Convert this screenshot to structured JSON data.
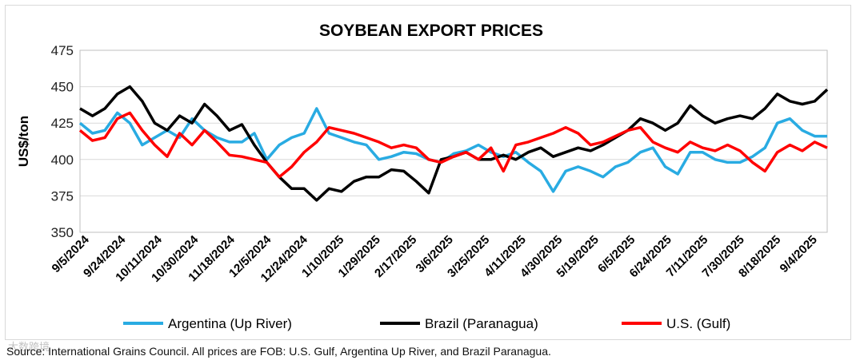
{
  "chart_data": {
    "type": "line",
    "title": "SOYBEAN EXPORT PRICES",
    "xlabel": "",
    "ylabel": "US$/ton",
    "ylim": [
      350,
      475
    ],
    "yticks": [
      350,
      375,
      400,
      425,
      450,
      475
    ],
    "grid": true,
    "legend_position": "bottom",
    "x_tick_labels": [
      "9/5/2024",
      "9/24/2024",
      "10/11/2024",
      "10/30/2024",
      "11/18/2024",
      "12/5/2024",
      "12/24/2024",
      "1/10/2025",
      "1/29/2025",
      "2/17/2025",
      "3/6/2025",
      "3/25/2025",
      "4/11/2025",
      "4/30/2025",
      "5/19/2025",
      "6/5/2025",
      "6/24/2025",
      "7/11/2025",
      "7/30/2025",
      "8/18/2025",
      "9/4/2025"
    ],
    "series": [
      {
        "name": "Argentina (Up River)",
        "color": "#29abe2",
        "values": [
          [
            0,
            425
          ],
          [
            1,
            418
          ],
          [
            2,
            420
          ],
          [
            3,
            432
          ],
          [
            4,
            425
          ],
          [
            5,
            410
          ],
          [
            6,
            415
          ],
          [
            7,
            420
          ],
          [
            8,
            415
          ],
          [
            9,
            428
          ],
          [
            10,
            420
          ],
          [
            11,
            415
          ],
          [
            12,
            412
          ],
          [
            13,
            412
          ],
          [
            14,
            418
          ],
          [
            15,
            400
          ],
          [
            16,
            410
          ],
          [
            17,
            415
          ],
          [
            18,
            418
          ],
          [
            19,
            435
          ],
          [
            20,
            418
          ],
          [
            21,
            415
          ],
          [
            22,
            412
          ],
          [
            23,
            410
          ],
          [
            24,
            400
          ],
          [
            25,
            402
          ],
          [
            26,
            405
          ],
          [
            27,
            404
          ],
          [
            28,
            400
          ],
          [
            29,
            398
          ],
          [
            30,
            404
          ],
          [
            31,
            406
          ],
          [
            32,
            410
          ],
          [
            33,
            405
          ],
          [
            34,
            402
          ],
          [
            35,
            405
          ],
          [
            36,
            398
          ],
          [
            37,
            392
          ],
          [
            38,
            378
          ],
          [
            39,
            392
          ],
          [
            40,
            395
          ],
          [
            41,
            392
          ],
          [
            42,
            388
          ],
          [
            43,
            395
          ],
          [
            44,
            398
          ],
          [
            45,
            405
          ],
          [
            46,
            408
          ],
          [
            47,
            395
          ],
          [
            48,
            390
          ],
          [
            49,
            405
          ],
          [
            50,
            405
          ],
          [
            51,
            400
          ],
          [
            52,
            398
          ],
          [
            53,
            398
          ],
          [
            54,
            402
          ],
          [
            55,
            408
          ],
          [
            56,
            425
          ],
          [
            57,
            428
          ],
          [
            58,
            420
          ],
          [
            59,
            416
          ],
          [
            60,
            416
          ]
        ]
      },
      {
        "name": "Brazil (Paranagua)",
        "color": "#000000",
        "values": [
          [
            0,
            435
          ],
          [
            1,
            430
          ],
          [
            2,
            435
          ],
          [
            3,
            445
          ],
          [
            4,
            450
          ],
          [
            5,
            440
          ],
          [
            6,
            425
          ],
          [
            7,
            420
          ],
          [
            8,
            430
          ],
          [
            9,
            425
          ],
          [
            10,
            438
          ],
          [
            11,
            430
          ],
          [
            12,
            420
          ],
          [
            13,
            424
          ],
          [
            14,
            410
          ],
          [
            15,
            398
          ],
          [
            16,
            388
          ],
          [
            17,
            380
          ],
          [
            18,
            380
          ],
          [
            19,
            372
          ],
          [
            20,
            380
          ],
          [
            21,
            378
          ],
          [
            22,
            385
          ],
          [
            23,
            388
          ],
          [
            24,
            388
          ],
          [
            25,
            393
          ],
          [
            26,
            392
          ],
          [
            27,
            385
          ],
          [
            28,
            377
          ],
          [
            29,
            400
          ],
          [
            30,
            402
          ],
          [
            31,
            405
          ],
          [
            32,
            400
          ],
          [
            33,
            400
          ],
          [
            34,
            403
          ],
          [
            35,
            400
          ],
          [
            36,
            405
          ],
          [
            37,
            408
          ],
          [
            38,
            402
          ],
          [
            39,
            405
          ],
          [
            40,
            408
          ],
          [
            41,
            406
          ],
          [
            42,
            410
          ],
          [
            43,
            415
          ],
          [
            44,
            420
          ],
          [
            45,
            428
          ],
          [
            46,
            425
          ],
          [
            47,
            420
          ],
          [
            48,
            425
          ],
          [
            49,
            437
          ],
          [
            50,
            430
          ],
          [
            51,
            425
          ],
          [
            52,
            428
          ],
          [
            53,
            430
          ],
          [
            54,
            428
          ],
          [
            55,
            435
          ],
          [
            56,
            445
          ],
          [
            57,
            440
          ],
          [
            58,
            438
          ],
          [
            59,
            440
          ],
          [
            60,
            448
          ]
        ]
      },
      {
        "name": "U.S. (Gulf)",
        "color": "#ff0000",
        "values": [
          [
            0,
            420
          ],
          [
            1,
            413
          ],
          [
            2,
            415
          ],
          [
            3,
            428
          ],
          [
            4,
            432
          ],
          [
            5,
            420
          ],
          [
            6,
            410
          ],
          [
            7,
            402
          ],
          [
            8,
            418
          ],
          [
            9,
            410
          ],
          [
            10,
            420
          ],
          [
            11,
            412
          ],
          [
            12,
            403
          ],
          [
            13,
            402
          ],
          [
            14,
            400
          ],
          [
            15,
            398
          ],
          [
            16,
            388
          ],
          [
            17,
            395
          ],
          [
            18,
            405
          ],
          [
            19,
            412
          ],
          [
            20,
            422
          ],
          [
            21,
            420
          ],
          [
            22,
            418
          ],
          [
            23,
            415
          ],
          [
            24,
            412
          ],
          [
            25,
            408
          ],
          [
            26,
            410
          ],
          [
            27,
            408
          ],
          [
            28,
            400
          ],
          [
            29,
            398
          ],
          [
            30,
            402
          ],
          [
            31,
            405
          ],
          [
            32,
            400
          ],
          [
            33,
            408
          ],
          [
            34,
            392
          ],
          [
            35,
            410
          ],
          [
            36,
            412
          ],
          [
            37,
            415
          ],
          [
            38,
            418
          ],
          [
            39,
            422
          ],
          [
            40,
            418
          ],
          [
            41,
            410
          ],
          [
            42,
            412
          ],
          [
            43,
            416
          ],
          [
            44,
            420
          ],
          [
            45,
            422
          ],
          [
            46,
            412
          ],
          [
            47,
            408
          ],
          [
            48,
            405
          ],
          [
            49,
            412
          ],
          [
            50,
            408
          ],
          [
            51,
            406
          ],
          [
            52,
            410
          ],
          [
            53,
            406
          ],
          [
            54,
            398
          ],
          [
            55,
            392
          ],
          [
            56,
            405
          ],
          [
            57,
            410
          ],
          [
            58,
            406
          ],
          [
            59,
            412
          ],
          [
            60,
            408
          ]
        ]
      }
    ]
  },
  "source_note": "Source: International Grains Council. All prices are FOB: U.S. Gulf, Argentina Up River, and Brazil Paranagua.",
  "watermark": "大数跨境"
}
